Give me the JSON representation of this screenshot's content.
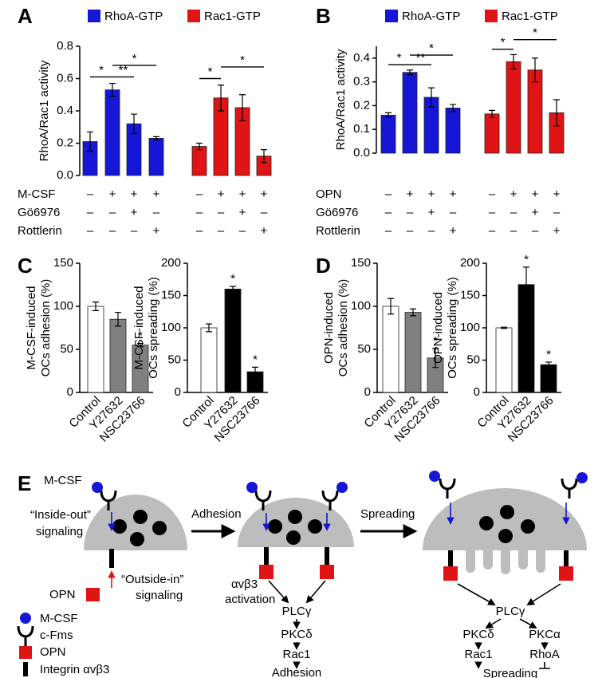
{
  "chart_data": [
    {
      "type": "bar",
      "panel": "A",
      "ylabel": "RhoA/Rac1 activity",
      "series": [
        {
          "name": "RhoA-GTP",
          "color": "#1616d6",
          "values": [
            0.21,
            0.53,
            0.32,
            0.23
          ],
          "errors": [
            0.06,
            0.04,
            0.06,
            0.01
          ]
        },
        {
          "name": "Rac1-GTP",
          "color": "#e01414",
          "values": [
            0.18,
            0.48,
            0.42,
            0.12
          ],
          "errors": [
            0.02,
            0.08,
            0.08,
            0.04
          ]
        }
      ],
      "ylim": [
        0,
        0.8
      ],
      "yticks": [
        {
          "value": 0,
          "label": "0.0"
        },
        0.2,
        0.4,
        0.6,
        0.8
      ],
      "treatments": [
        {
          "name": "M-CSF",
          "marks": [
            "–",
            "+",
            "+",
            "+",
            "–",
            "+",
            "+",
            "+"
          ]
        },
        {
          "name": "Gö6976",
          "marks": [
            "–",
            "–",
            "+",
            "–",
            "–",
            "–",
            "+",
            "–"
          ]
        },
        {
          "name": "Rottlerin",
          "marks": [
            "–",
            "–",
            "–",
            "+",
            "–",
            "–",
            "–",
            "+"
          ]
        }
      ],
      "brackets": [
        {
          "bars": [
            0,
            1
          ],
          "label": "*"
        },
        {
          "bars": [
            1,
            2
          ],
          "label": "**"
        },
        {
          "bars": [
            1,
            3
          ],
          "label": "*"
        },
        {
          "bars": [
            4,
            5
          ],
          "label": "*"
        },
        {
          "bars": [
            5,
            7
          ],
          "label": "*"
        }
      ]
    },
    {
      "type": "bar",
      "panel": "B",
      "ylabel": "RhoA/Rac1 activity",
      "series": [
        {
          "name": "RhoA-GTP",
          "color": "#1616d6",
          "values": [
            0.16,
            0.34,
            0.235,
            0.19
          ],
          "errors": [
            0.01,
            0.01,
            0.04,
            0.015
          ]
        },
        {
          "name": "Rac1-GTP",
          "color": "#e01414",
          "values": [
            0.165,
            0.385,
            0.35,
            0.17
          ],
          "errors": [
            0.015,
            0.03,
            0.05,
            0.055
          ]
        }
      ],
      "ylim": [
        0,
        0.45
      ],
      "yticks": [
        {
          "value": 0,
          "label": "0.0"
        },
        0.1,
        0.2,
        0.3,
        0.4
      ],
      "treatments": [
        {
          "name": "OPN",
          "marks": [
            "–",
            "+",
            "+",
            "+",
            "–",
            "+",
            "+",
            "+"
          ]
        },
        {
          "name": "Gö6976",
          "marks": [
            "–",
            "–",
            "+",
            "–",
            "–",
            "–",
            "+",
            "–"
          ]
        },
        {
          "name": "Rottlerin",
          "marks": [
            "–",
            "–",
            "–",
            "+",
            "–",
            "–",
            "–",
            "+"
          ]
        }
      ],
      "brackets": [
        {
          "bars": [
            0,
            1
          ],
          "label": "*"
        },
        {
          "bars": [
            1,
            2
          ],
          "label": "**"
        },
        {
          "bars": [
            1,
            3
          ],
          "label": "*"
        },
        {
          "bars": [
            4,
            5
          ],
          "label": "*"
        },
        {
          "bars": [
            5,
            7
          ],
          "label": "*"
        }
      ]
    },
    {
      "type": "bar",
      "panel": "C",
      "ylabel": [
        "M-CSF-induced",
        "OCs adhesion (%)"
      ],
      "categories": [
        "Control",
        "Y27632",
        "NSC23766"
      ],
      "values": [
        100,
        85,
        55
      ],
      "errors": [
        5,
        8,
        2
      ],
      "colors": [
        "#ffffff",
        "#808080",
        "#808080"
      ],
      "ylim": [
        0,
        150
      ],
      "yticks": [
        0,
        50,
        100,
        150
      ],
      "stars": [
        {
          "bar": 2,
          "label": "*"
        }
      ]
    },
    {
      "type": "bar",
      "ylabel": [
        "M-CSF-induced",
        "OCs spreading (%)"
      ],
      "categories": [
        "Control",
        "Y27632",
        "NSC23766"
      ],
      "values": [
        100,
        160,
        32
      ],
      "errors": [
        6,
        4,
        7
      ],
      "colors": [
        "#ffffff",
        "#000000",
        "#000000"
      ],
      "ylim": [
        0,
        200
      ],
      "yticks": [
        0,
        50,
        100,
        150,
        200
      ],
      "stars": [
        {
          "bar": 1,
          "label": "*"
        },
        {
          "bar": 2,
          "label": "*"
        }
      ]
    },
    {
      "type": "bar",
      "panel": "D",
      "ylabel": [
        "OPN-induced",
        "OCs adhesion (%)"
      ],
      "categories": [
        "Control",
        "Y27632",
        "NSC23766"
      ],
      "values": [
        100,
        93,
        40
      ],
      "errors": [
        9,
        4,
        11
      ],
      "colors": [
        "#ffffff",
        "#808080",
        "#808080"
      ],
      "ylim": [
        0,
        150
      ],
      "yticks": [
        0,
        50,
        100,
        150
      ],
      "stars": [
        {
          "bar": 2,
          "label": "*"
        }
      ]
    },
    {
      "type": "bar",
      "ylabel": [
        "OPN-induced",
        "OCs spreading (%)"
      ],
      "categories": [
        "Control",
        "Y27632",
        "NSC23766"
      ],
      "values": [
        100,
        167,
        43
      ],
      "errors": [
        1,
        27,
        4
      ],
      "colors": [
        "#ffffff",
        "#000000",
        "#000000"
      ],
      "ylim": [
        0,
        200
      ],
      "yticks": [
        0,
        50,
        100,
        150,
        200
      ],
      "stars": [
        {
          "bar": 1,
          "label": "*"
        },
        {
          "bar": 2,
          "label": "*"
        }
      ]
    }
  ],
  "diagram": {
    "panel": "E",
    "mcsf": "M-CSF",
    "inside_out": [
      "“Inside-out”",
      "signaling"
    ],
    "opn": "OPN",
    "outside_in": [
      "“Outside-in”",
      "signaling"
    ],
    "step1": "Adhesion",
    "activation": [
      "αvβ3",
      "activation"
    ],
    "adhesion_path": [
      "PLCγ",
      "PKCδ",
      "Rac1",
      "Adhesion"
    ],
    "step2": "Spreading",
    "spreading_path": {
      "plc": "PLCγ",
      "pkcd": "PKCδ",
      "pkca": "PKCα",
      "rac1": "Rac1",
      "rhoa": "RhoA",
      "end": "Spreading"
    },
    "legend": [
      "M-CSF",
      "c-Fms",
      "OPN",
      "Integrin αvβ3"
    ]
  }
}
